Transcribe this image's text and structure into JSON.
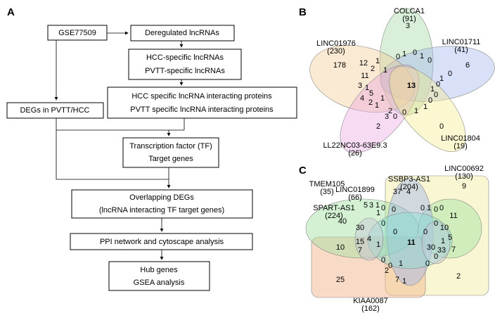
{
  "panels": {
    "a": "A",
    "b": "B",
    "c": "C"
  },
  "flow": {
    "source": "GSE77509",
    "deregulated": "Deregulated lncRNAs",
    "specific": [
      "HCC-specific lncRNAs",
      "PVTT-specific lncRNAs"
    ],
    "proteins": [
      "HCC specific lncRNA interacting proteins",
      "PVTT specific lncRNA interacting proteins"
    ],
    "degs": "DEGs in PVTT/HCC",
    "tf": [
      "Transcription factor (TF)",
      "Target genes"
    ],
    "overlap": [
      "Overlapping DEGs",
      "(lncRNA interacting TF target genes)"
    ],
    "ppi": "PPI network and cytoscape analysis",
    "hub": [
      "Hub genes",
      "GSEA analysis"
    ]
  },
  "venn_b": {
    "sets": [
      {
        "name": "COLCA1",
        "count": "(91)"
      },
      {
        "name": "LINC01711",
        "count": "(41)"
      },
      {
        "name": "LINC01976",
        "count": "(230)"
      },
      {
        "name": "LL22NC03-63E9.3",
        "count": "(26)"
      },
      {
        "name": "LINC01804",
        "count": "(19)"
      }
    ],
    "regions": [
      3,
      6,
      178,
      2,
      0,
      13,
      12,
      1,
      0,
      1,
      0,
      1,
      0,
      2,
      1,
      11,
      3,
      1,
      5,
      4,
      2,
      1,
      1,
      2,
      3,
      0,
      0,
      1,
      1,
      0,
      0,
      1,
      0,
      1,
      0
    ]
  },
  "venn_c": {
    "sets": [
      {
        "name": "TMEM105",
        "count": "(35)"
      },
      {
        "name": "LINC01899",
        "count": "(66)"
      },
      {
        "name": "SSBP3-AS1",
        "count": "(204)"
      },
      {
        "name": "LINC00692",
        "count": "(130)"
      },
      {
        "name": "SPART-AS1",
        "count": "(224)"
      },
      {
        "name": "KIAA0087",
        "count": "(162)"
      }
    ],
    "regions": [
      37,
      4,
      9,
      40,
      11,
      10,
      11,
      7,
      25,
      2,
      5,
      3,
      1,
      0,
      0,
      0,
      1,
      0,
      0,
      1,
      0,
      0,
      0,
      0,
      30,
      10,
      15,
      4,
      1,
      1,
      5,
      30,
      33,
      7,
      0,
      0,
      1,
      0,
      0,
      2,
      7,
      1
    ]
  }
}
